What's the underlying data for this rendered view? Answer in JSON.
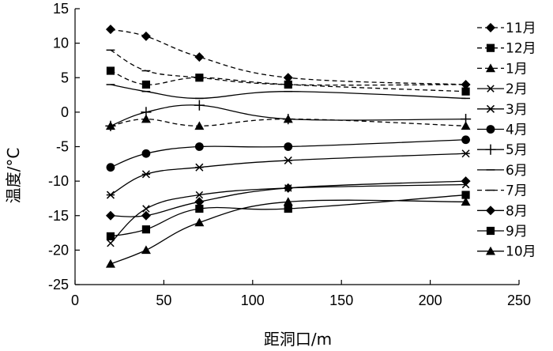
{
  "chart_data": {
    "type": "line",
    "xlabel": "距洞口/m",
    "ylabel": "温度/°C",
    "xlim": [
      0,
      250
    ],
    "ylim": [
      -25,
      15
    ],
    "xticks": [
      0,
      50,
      100,
      150,
      200,
      250
    ],
    "yticks": [
      15,
      10,
      5,
      0,
      -5,
      -10,
      -15,
      -20,
      -25
    ],
    "grid": false,
    "legend_position": "right",
    "series": [
      {
        "name": "11月",
        "marker": "diamond",
        "dash": "dashed",
        "x": [
          20,
          40,
          70,
          120,
          220
        ],
        "y": [
          12,
          11,
          8,
          5,
          4
        ]
      },
      {
        "name": "12月",
        "marker": "square",
        "dash": "dashed",
        "x": [
          20,
          40,
          70,
          120,
          220
        ],
        "y": [
          6,
          4,
          5,
          4,
          3
        ]
      },
      {
        "name": "1月",
        "marker": "triangle",
        "dash": "dashed",
        "x": [
          20,
          40,
          70,
          120,
          220
        ],
        "y": [
          -2,
          -1,
          -2,
          -1,
          -2
        ]
      },
      {
        "name": "2月",
        "marker": "x",
        "dash": "solid",
        "x": [
          20,
          40,
          70,
          120,
          220
        ],
        "y": [
          -19,
          -14,
          -12,
          -11,
          -10.5
        ]
      },
      {
        "name": "3月",
        "marker": "asterisk",
        "dash": "solid",
        "x": [
          20,
          40,
          70,
          120,
          220
        ],
        "y": [
          -12,
          -9,
          -8,
          -7,
          -6
        ]
      },
      {
        "name": "4月",
        "marker": "circle",
        "dash": "solid",
        "x": [
          20,
          40,
          70,
          120,
          220
        ],
        "y": [
          -8,
          -6,
          -5,
          -5,
          -4
        ]
      },
      {
        "name": "5月",
        "marker": "plus",
        "dash": "solid",
        "x": [
          20,
          40,
          70,
          120,
          220
        ],
        "y": [
          -2,
          0,
          1,
          -1,
          -1
        ]
      },
      {
        "name": "6月",
        "marker": "dash",
        "dash": "solid",
        "x": [
          20,
          40,
          70,
          120,
          220
        ],
        "y": [
          4,
          3,
          2,
          3,
          2
        ]
      },
      {
        "name": "7月",
        "marker": "dash",
        "dash": "dashed",
        "x": [
          20,
          40,
          70,
          120,
          220
        ],
        "y": [
          9,
          6,
          5,
          4,
          4
        ]
      },
      {
        "name": "8月",
        "marker": "diamond",
        "dash": "solid",
        "x": [
          20,
          40,
          70,
          120,
          220
        ],
        "y": [
          -15,
          -15,
          -13,
          -11,
          -10
        ]
      },
      {
        "name": "9月",
        "marker": "square",
        "dash": "solid",
        "x": [
          20,
          40,
          70,
          120,
          220
        ],
        "y": [
          -18,
          -17,
          -14,
          -14,
          -12
        ]
      },
      {
        "name": "10月",
        "marker": "triangle",
        "dash": "solid",
        "x": [
          20,
          40,
          70,
          120,
          220
        ],
        "y": [
          -22,
          -20,
          -16,
          -13,
          -13
        ]
      }
    ]
  }
}
